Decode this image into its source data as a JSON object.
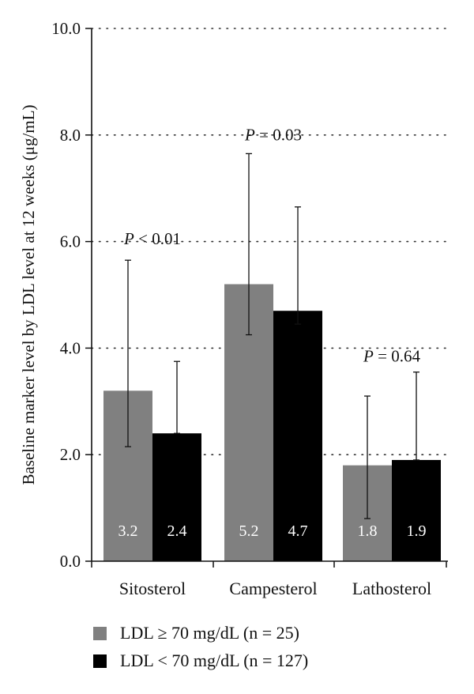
{
  "chart_data": {
    "type": "bar",
    "ylabel": "Baseline marker level by LDL level at 12 weeks (μg/mL)",
    "ylim": [
      0,
      10
    ],
    "yticks": [
      "0.0",
      "2.0",
      "4.0",
      "6.0",
      "8.0",
      "10.0"
    ],
    "grid": "dotted horizontal",
    "categories": [
      "Sitosterol",
      "Campesterol",
      "Lathosterol"
    ],
    "series": [
      {
        "name": "LDL ≥ 70 mg/dL (n = 25)",
        "color": "#808080",
        "values": [
          3.2,
          5.2,
          1.8
        ],
        "labels": [
          "3.2",
          "5.2",
          "1.8"
        ],
        "err_low": [
          2.15,
          4.25,
          0.8
        ],
        "err_high": [
          5.65,
          7.65,
          3.1
        ]
      },
      {
        "name": "LDL < 70 mg/dL (n = 127)",
        "color": "#000000",
        "values": [
          2.4,
          4.7,
          1.9
        ],
        "labels": [
          "2.4",
          "4.7",
          "1.9"
        ],
        "err_low": [
          2.4,
          4.45,
          1.9
        ],
        "err_high": [
          3.75,
          6.65,
          3.55
        ]
      }
    ],
    "annotations": [
      {
        "text": "P < 0.01",
        "category": "Sitosterol",
        "y": 5.95
      },
      {
        "text": "P = 0.03",
        "category": "Campesterol",
        "y": 7.9
      },
      {
        "text": "P = 0.64",
        "category": "Lathosterol",
        "y": 3.75
      }
    ],
    "legend": "bottom-left"
  }
}
